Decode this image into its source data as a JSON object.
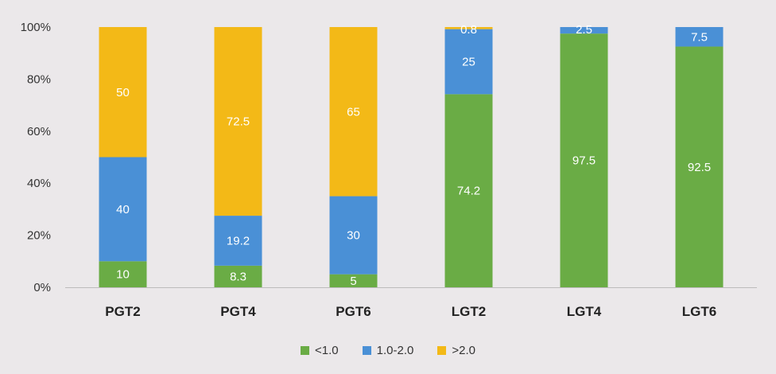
{
  "chart_data": {
    "type": "bar",
    "stacked": true,
    "percent": true,
    "categories": [
      "PGT2",
      "PGT4",
      "PGT6",
      "LGT2",
      "LGT4",
      "LGT6"
    ],
    "series": [
      {
        "name": "<1.0",
        "color": "#6aac45",
        "values": [
          10,
          8.3,
          5,
          74.2,
          97.5,
          92.5
        ],
        "labels": [
          "10",
          "8.3",
          "5",
          "74.2",
          "97.5",
          "92.5"
        ]
      },
      {
        "name": "1.0-2.0",
        "color": "#4a90d6",
        "values": [
          40,
          19.2,
          30,
          25,
          2.5,
          7.5
        ],
        "labels": [
          "40",
          "19.2",
          "30",
          "25",
          "2.5",
          "7.5"
        ]
      },
      {
        "name": ">2.0",
        "color": "#f3b917",
        "values": [
          50,
          72.5,
          65,
          0.8,
          0,
          0
        ],
        "labels": [
          "50",
          "72.5",
          "65",
          "0.8",
          "",
          ""
        ]
      }
    ],
    "y_ticks": [
      "0%",
      "20%",
      "40%",
      "60%",
      "80%",
      "100%"
    ],
    "ylim": [
      0,
      100
    ],
    "legend_position": "bottom",
    "grid": false
  }
}
